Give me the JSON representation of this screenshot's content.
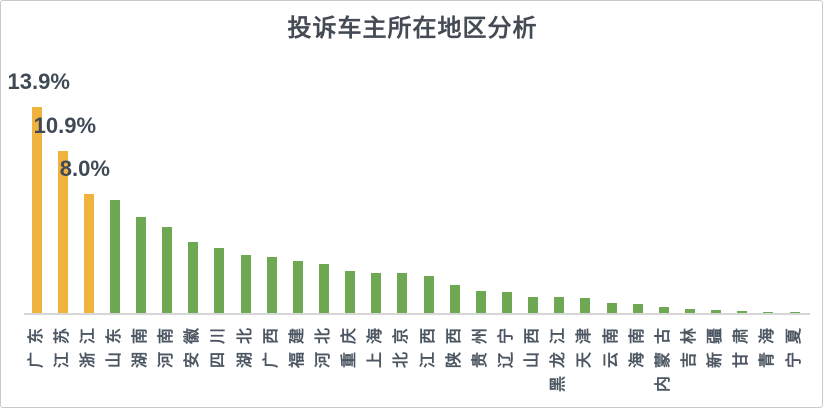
{
  "chart_data": {
    "type": "bar",
    "title": "投诉车主所在地区分析",
    "categories": [
      "广东",
      "江苏",
      "浙江",
      "山东",
      "湖南",
      "河南",
      "安徽",
      "四川",
      "湖北",
      "广西",
      "福建",
      "河北",
      "重庆",
      "上海",
      "北京",
      "江西",
      "陕西",
      "贵州",
      "辽宁",
      "山西",
      "黑龙江",
      "天津",
      "云南",
      "海南",
      "内蒙古",
      "吉林",
      "新疆",
      "甘肃",
      "青海",
      "宁夏"
    ],
    "values": [
      13.9,
      10.9,
      8.0,
      7.6,
      6.5,
      5.8,
      4.8,
      4.4,
      3.9,
      3.8,
      3.5,
      3.3,
      2.8,
      2.7,
      2.7,
      2.5,
      1.9,
      1.5,
      1.4,
      1.1,
      1.1,
      1.0,
      0.7,
      0.6,
      0.4,
      0.3,
      0.2,
      0.15,
      0.1,
      0.1
    ],
    "unit": "%",
    "value_labels": {
      "0": "13.9%",
      "1": "10.9%",
      "2": "8.0%"
    },
    "highlight_count": 3,
    "xlabel": "",
    "ylabel": "",
    "ylim": [
      0,
      15
    ],
    "grid": false,
    "legend": false,
    "colors": {
      "highlight_bar": "#F0B43E",
      "default_bar": "#6EA852",
      "axis_line": "#D6D6D6",
      "title_text": "#454B54",
      "data_label_text": "#404A57",
      "axis_label_text": "#4D5763",
      "frame_border": "#C9C9C9",
      "background": "#FFFFFF"
    }
  }
}
